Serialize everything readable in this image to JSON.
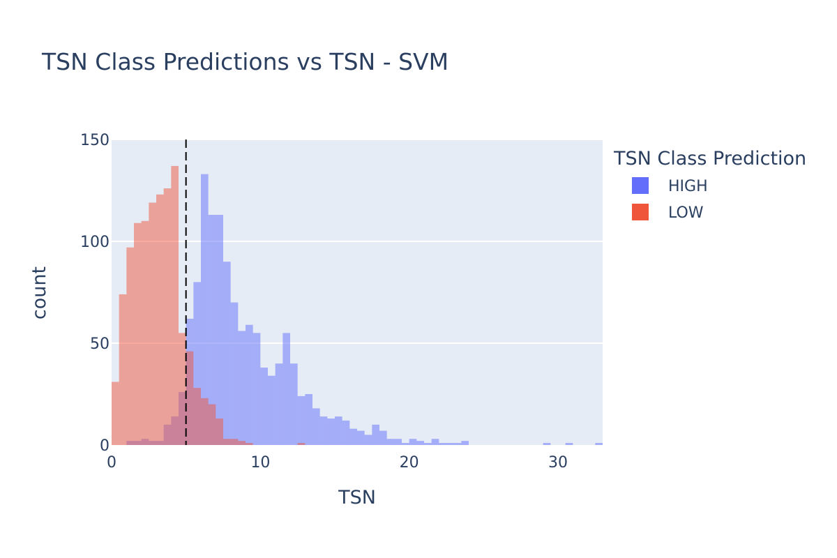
{
  "chart_data": {
    "type": "histogram",
    "title": "TSN Class Predictions vs TSN - SVM",
    "xlabel": "TSN",
    "ylabel": "count",
    "xlim": [
      0,
      33
    ],
    "ylim": [
      0,
      150
    ],
    "x_ticks": [
      0,
      10,
      20,
      30
    ],
    "y_ticks": [
      0,
      50,
      100,
      150
    ],
    "bin_width": 0.5,
    "barmode": "overlay",
    "grid": true,
    "threshold_line": {
      "x": 5,
      "style": "dashed",
      "color": "#000000"
    },
    "legend": {
      "title": "TSN Class Prediction",
      "position": "right"
    },
    "series": [
      {
        "name": "HIGH",
        "color": "#636efa",
        "bin_starts": [
          1,
          1.5,
          2,
          2.5,
          3,
          3.5,
          4,
          4.5,
          5,
          5.5,
          6,
          6.5,
          7,
          7.5,
          8,
          8.5,
          9,
          9.5,
          10,
          10.5,
          11,
          11.5,
          12,
          12.5,
          13,
          13.5,
          14,
          14.5,
          15,
          15.5,
          16,
          16.5,
          17,
          17.5,
          18,
          18.5,
          19,
          19.5,
          20,
          20.5,
          21,
          21.5,
          22,
          22.5,
          23,
          23.5,
          29,
          30.5,
          32.5
        ],
        "values": [
          2,
          2,
          3,
          2,
          2,
          10,
          14,
          26,
          62,
          80,
          133,
          113,
          113,
          90,
          70,
          56,
          59,
          55,
          38,
          34,
          40,
          55,
          40,
          24,
          25,
          18,
          14,
          13,
          14,
          12,
          8,
          7,
          5,
          10,
          7,
          3,
          3,
          1,
          3,
          2,
          1,
          3,
          1,
          1,
          1,
          2,
          1,
          1,
          1
        ]
      },
      {
        "name": "LOW",
        "color": "#ef553b",
        "bin_starts": [
          0,
          0.5,
          1,
          1.5,
          2,
          2.5,
          3,
          3.5,
          4,
          4.5,
          5,
          5.5,
          6,
          6.5,
          7,
          7.5,
          8,
          8.5,
          9,
          12.5
        ],
        "values": [
          31,
          74,
          97,
          109,
          110,
          119,
          123,
          126,
          137,
          55,
          46,
          28,
          23,
          20,
          13,
          3,
          3,
          2,
          1,
          1
        ]
      }
    ]
  }
}
